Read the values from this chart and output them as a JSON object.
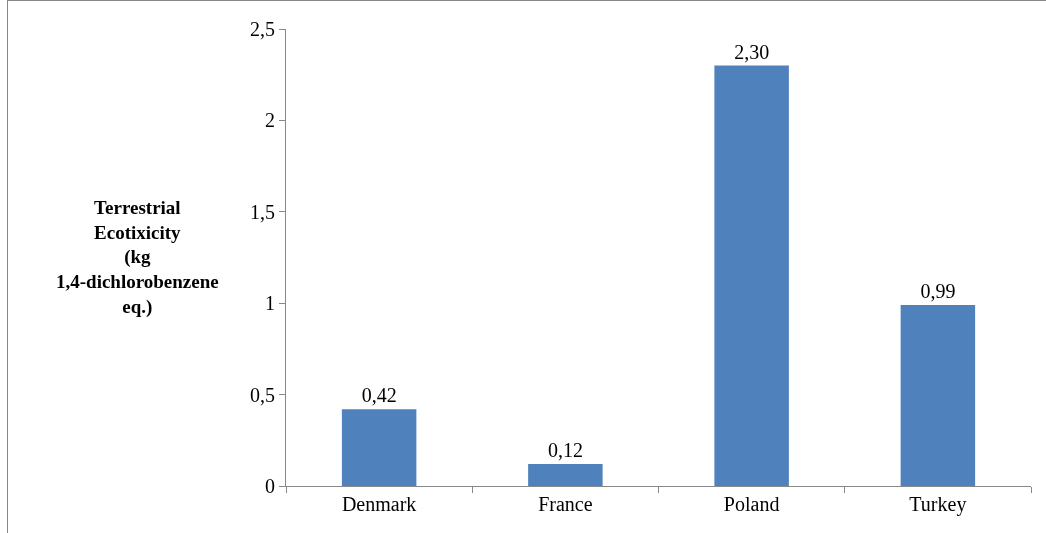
{
  "chart_data": {
    "type": "bar",
    "ylabel": "Terrestrial Ecotixicity (kg 1,4-dichlorobenzene eq.)",
    "categories": [
      "Denmark",
      "France",
      "Poland",
      "Turkey"
    ],
    "values": [
      0.42,
      0.12,
      2.3,
      0.99
    ],
    "value_labels": [
      "0,42",
      "0,12",
      "2,30",
      "0,99"
    ],
    "color": "#4f81bd",
    "ylim": [
      0,
      2.5
    ],
    "yticks": [
      0,
      {
        "value": 0.5,
        "label": "0,5"
      },
      1,
      {
        "value": 1.5,
        "label": "1,5"
      },
      2,
      {
        "value": 2.5,
        "label": "2,5"
      }
    ],
    "grid": false,
    "legend": false
  }
}
